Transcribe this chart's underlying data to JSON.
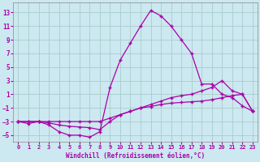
{
  "xlabel": "Windchill (Refroidissement éolien,°C)",
  "background_color": "#cce8f0",
  "grid_color": "#aacccc",
  "line_color": "#aa00aa",
  "xlim": [
    -0.5,
    23.5
  ],
  "ylim": [
    -6,
    14.5
  ],
  "xticks": [
    0,
    1,
    2,
    3,
    4,
    5,
    6,
    7,
    8,
    9,
    10,
    11,
    12,
    13,
    14,
    15,
    16,
    17,
    18,
    19,
    20,
    21,
    22,
    23
  ],
  "yticks": [
    -5,
    -3,
    -1,
    1,
    3,
    5,
    7,
    9,
    11,
    13
  ],
  "line1_x": [
    0,
    1,
    2,
    3,
    4,
    5,
    6,
    7,
    8,
    9,
    10,
    11,
    12,
    13,
    14,
    15,
    16,
    17,
    18,
    19,
    20,
    21,
    22,
    23
  ],
  "line1_y": [
    -3,
    -3.3,
    -3,
    -3.5,
    -4.5,
    -5,
    -5,
    -5.3,
    -4.5,
    2,
    6,
    8.5,
    11,
    13.3,
    12.5,
    11,
    9,
    7,
    2.5,
    2.5,
    1,
    0.5,
    -0.7,
    -1.5
  ],
  "line2_x": [
    0,
    1,
    2,
    3,
    4,
    5,
    6,
    7,
    8,
    9,
    10,
    11,
    12,
    13,
    14,
    15,
    16,
    17,
    18,
    19,
    20,
    21,
    22,
    23
  ],
  "line2_y": [
    -3,
    -3,
    -3,
    -3.2,
    -3.5,
    -3.7,
    -3.8,
    -3.9,
    -4.2,
    -3,
    -2,
    -1.5,
    -1,
    -0.5,
    0,
    0.5,
    0.8,
    1,
    1.5,
    2,
    3,
    1.5,
    1,
    -1.5
  ],
  "line3_x": [
    0,
    1,
    2,
    3,
    4,
    5,
    6,
    7,
    8,
    9,
    10,
    11,
    12,
    13,
    14,
    15,
    16,
    17,
    18,
    19,
    20,
    21,
    22,
    23
  ],
  "line3_y": [
    -3,
    -3,
    -3,
    -3,
    -3,
    -3,
    -3,
    -3,
    -3,
    -2.5,
    -2,
    -1.5,
    -1,
    -0.8,
    -0.5,
    -0.3,
    -0.2,
    -0.1,
    0,
    0.2,
    0.5,
    0.8,
    1,
    -1.5
  ]
}
